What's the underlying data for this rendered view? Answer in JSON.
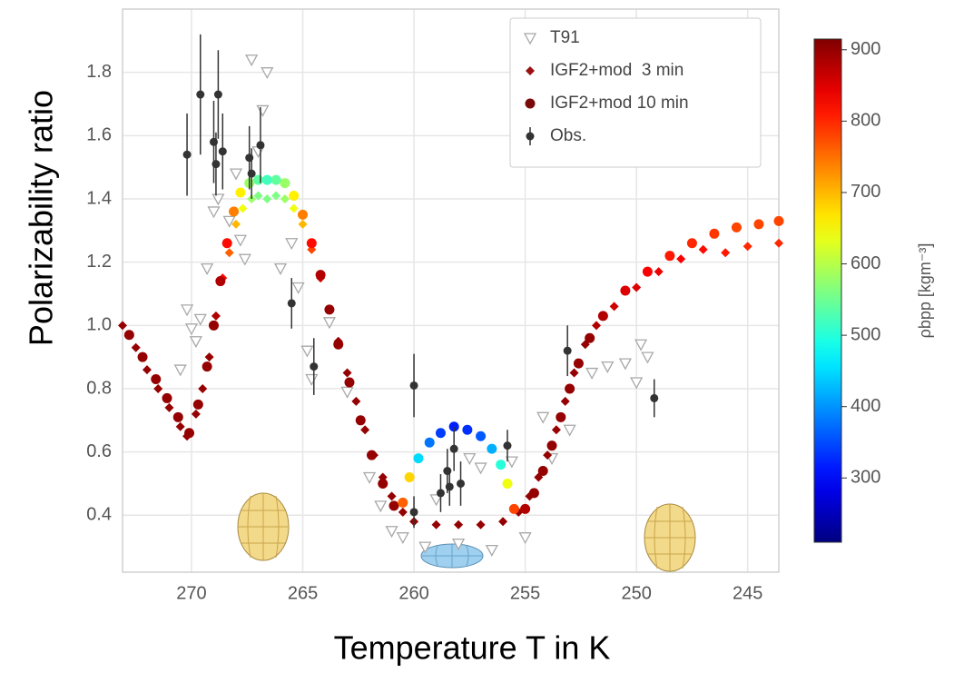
{
  "chart_data": {
    "type": "scatter",
    "x_label": "Temperature T in K",
    "y_label": "Polarizability ratio",
    "xlim": [
      273.1,
      243.6
    ],
    "ylim": [
      0.22,
      2.0
    ],
    "xticks": [
      270,
      265,
      260,
      255,
      250,
      245
    ],
    "yticks": [
      0.4,
      0.6,
      0.8,
      {
        "value": 1.0,
        "label": "1.0"
      },
      1.2,
      1.4,
      1.6,
      1.8
    ],
    "grid": true,
    "legend": "upper right",
    "colormap": "jet",
    "colorbar": {
      "label": "ρbpp [kgm⁻³]",
      "clim": [
        210,
        915
      ],
      "ticks": [
        300,
        400,
        500,
        600,
        700,
        800,
        900
      ]
    },
    "series": [
      {
        "name": "T91",
        "marker": "triangle-down",
        "color": "#a8a8a8",
        "x": [
          270.5,
          270.2,
          270.0,
          269.8,
          269.6,
          269.3,
          269.0,
          268.8,
          268.3,
          268.0,
          267.8,
          267.6,
          267.3,
          267.0,
          266.8,
          266.6,
          266.0,
          265.5,
          265.2,
          264.8,
          264.6,
          263.8,
          263.0,
          262.0,
          261.5,
          261.0,
          260.5,
          259.5,
          259.0,
          258.0,
          257.5,
          257.0,
          256.5,
          255.6,
          255.0,
          254.2,
          253.8,
          253.0,
          252.0,
          251.3,
          250.5,
          250.0,
          249.8,
          249.5
        ],
        "values": [
          0.86,
          1.05,
          0.99,
          0.95,
          1.02,
          1.18,
          1.36,
          1.4,
          1.33,
          1.48,
          1.27,
          1.21,
          1.84,
          1.55,
          1.68,
          1.8,
          1.18,
          1.26,
          1.12,
          0.92,
          0.83,
          1.01,
          0.79,
          0.52,
          0.43,
          0.35,
          0.33,
          0.3,
          0.45,
          0.31,
          0.58,
          0.55,
          0.29,
          0.57,
          0.33,
          0.71,
          0.58,
          0.67,
          0.85,
          0.87,
          0.88,
          0.82,
          0.94,
          0.9
        ]
      },
      {
        "name": "IGF2+mod  3 min",
        "marker": "diamond",
        "color": "#9b1010",
        "x": [
          273.1,
          272.5,
          272.0,
          271.5,
          271.0,
          270.5,
          270.2,
          269.8,
          269.5,
          269.2,
          268.9,
          268.6,
          268.3,
          268.0,
          267.7,
          267.3,
          267.0,
          266.6,
          266.2,
          265.8,
          265.4,
          265.0,
          264.6,
          264.2,
          263.8,
          263.4,
          263.0,
          262.6,
          262.2,
          261.8,
          261.4,
          261.0,
          260.5,
          260.0,
          259.0,
          258.0,
          257.0,
          256.0,
          255.3,
          254.8,
          254.4,
          254.0,
          253.6,
          253.2,
          252.8,
          252.3,
          251.8,
          251.0,
          250.0,
          249.0,
          248.0,
          247.0,
          246.0,
          245.0,
          243.6
        ],
        "values": [
          1.0,
          0.93,
          0.86,
          0.8,
          0.74,
          0.68,
          0.65,
          0.72,
          0.8,
          0.9,
          1.03,
          1.15,
          1.23,
          1.32,
          1.37,
          1.4,
          1.41,
          1.4,
          1.41,
          1.4,
          1.37,
          1.32,
          1.24,
          1.15,
          1.05,
          0.95,
          0.85,
          0.76,
          0.67,
          0.59,
          0.52,
          0.46,
          0.41,
          0.38,
          0.37,
          0.37,
          0.37,
          0.38,
          0.41,
          0.46,
          0.52,
          0.59,
          0.67,
          0.76,
          0.85,
          0.94,
          1.0,
          1.06,
          1.12,
          1.17,
          1.21,
          1.24,
          1.23,
          1.25,
          1.26
        ],
        "c": [
          900,
          900,
          900,
          900,
          900,
          900,
          900,
          900,
          900,
          900,
          880,
          820,
          760,
          700,
          640,
          580,
          560,
          560,
          560,
          580,
          640,
          700,
          780,
          860,
          900,
          900,
          900,
          900,
          900,
          900,
          900,
          900,
          900,
          900,
          900,
          900,
          900,
          900,
          900,
          900,
          900,
          900,
          900,
          900,
          900,
          900,
          880,
          860,
          850,
          840,
          830,
          820,
          810,
          800,
          800
        ]
      },
      {
        "name": "IGF2+mod 10 min",
        "marker": "circle",
        "color": "#7a0a0a",
        "x": [
          272.8,
          272.2,
          271.6,
          271.1,
          270.6,
          270.1,
          269.7,
          269.3,
          269.0,
          268.7,
          268.4,
          268.1,
          267.8,
          267.4,
          267.0,
          266.6,
          266.2,
          265.8,
          265.4,
          265.0,
          264.6,
          264.2,
          263.8,
          263.4,
          262.9,
          262.4,
          261.9,
          261.4,
          260.9,
          260.5,
          260.2,
          259.8,
          259.3,
          258.8,
          258.2,
          257.6,
          257.0,
          256.5,
          256.1,
          255.8,
          255.5,
          255.0,
          254.6,
          254.2,
          253.8,
          253.4,
          253.0,
          252.6,
          252.1,
          251.5,
          250.5,
          249.5,
          248.5,
          247.5,
          246.5,
          245.5,
          244.5,
          243.6
        ],
        "values": [
          0.97,
          0.9,
          0.83,
          0.77,
          0.71,
          0.66,
          0.75,
          0.87,
          1.0,
          1.14,
          1.26,
          1.36,
          1.42,
          1.45,
          1.46,
          1.46,
          1.46,
          1.45,
          1.41,
          1.35,
          1.26,
          1.16,
          1.05,
          0.94,
          0.82,
          0.7,
          0.59,
          0.5,
          0.43,
          0.44,
          0.52,
          0.58,
          0.63,
          0.66,
          0.68,
          0.67,
          0.65,
          0.61,
          0.56,
          0.5,
          0.42,
          0.42,
          0.47,
          0.54,
          0.62,
          0.71,
          0.8,
          0.88,
          0.96,
          1.03,
          1.11,
          1.17,
          1.22,
          1.26,
          1.29,
          1.31,
          1.32,
          1.33
        ],
        "c": [
          900,
          900,
          900,
          900,
          900,
          900,
          900,
          900,
          900,
          880,
          820,
          740,
          660,
          580,
          540,
          520,
          540,
          580,
          660,
          740,
          820,
          880,
          900,
          900,
          900,
          900,
          900,
          900,
          900,
          760,
          680,
          450,
          380,
          340,
          320,
          330,
          360,
          420,
          500,
          640,
          780,
          880,
          900,
          900,
          900,
          900,
          900,
          900,
          900,
          880,
          850,
          830,
          810,
          800,
          790,
          780,
          780,
          780
        ]
      },
      {
        "name": "Obs.",
        "marker": "errorbar",
        "color": "#333333",
        "x": [
          270.2,
          269.6,
          269.0,
          268.9,
          268.8,
          268.6,
          267.4,
          267.3,
          266.9,
          265.5,
          264.5,
          260.0,
          260.0,
          258.8,
          258.5,
          258.2,
          258.4,
          257.9,
          255.8,
          253.1,
          249.2
        ],
        "values": [
          1.54,
          1.73,
          1.58,
          1.51,
          1.73,
          1.55,
          1.53,
          1.48,
          1.57,
          1.07,
          0.87,
          0.81,
          0.41,
          0.47,
          0.54,
          0.61,
          0.49,
          0.5,
          0.62,
          0.92,
          0.77
        ],
        "errors": [
          0.13,
          0.19,
          0.13,
          0.1,
          0.14,
          0.12,
          0.1,
          0.08,
          0.12,
          0.08,
          0.09,
          0.1,
          0.05,
          0.06,
          0.07,
          0.07,
          0.06,
          0.07,
          0.05,
          0.08,
          0.06
        ]
      }
    ]
  }
}
